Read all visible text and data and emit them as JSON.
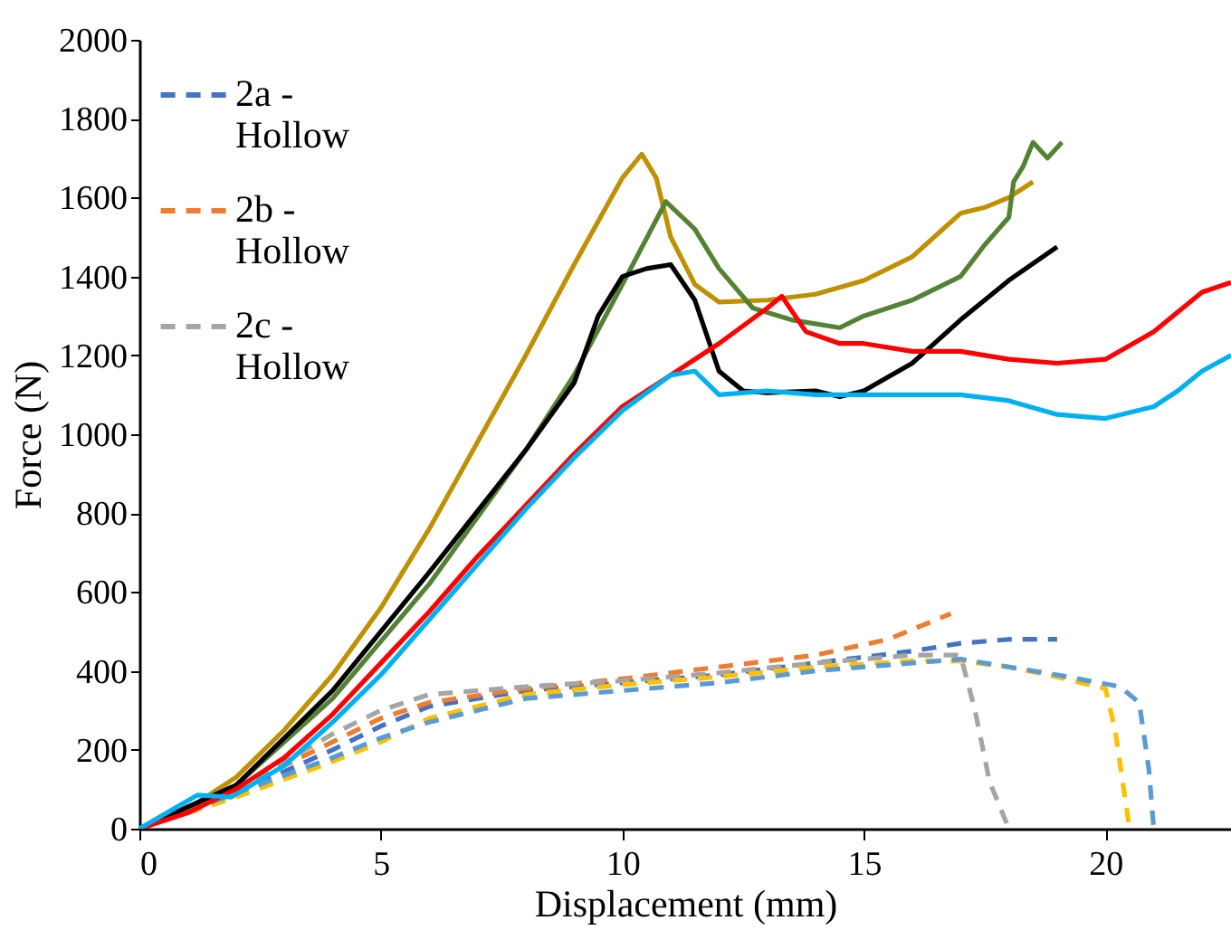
{
  "chart_data": {
    "type": "line",
    "xlabel": "Displacement (mm)",
    "ylabel": "Force (N)",
    "xlim": [
      0,
      22.6
    ],
    "xticks": [
      0,
      5,
      10,
      15,
      20
    ],
    "ylim": [
      0,
      2000
    ],
    "yticks": [
      0,
      200,
      400,
      600,
      800,
      1000,
      1200,
      1400,
      1600,
      1800,
      2000
    ],
    "grid": false,
    "legend": "top left",
    "marker": "none",
    "series": [
      {
        "name": "2a - Hollow",
        "color": "#4472c4",
        "line_style": "dashed",
        "x": [
          0,
          2,
          4,
          5,
          6,
          8,
          10,
          12,
          14,
          16,
          17,
          18,
          19
        ],
        "values": [
          0,
          90,
          200,
          260,
          310,
          350,
          370,
          390,
          420,
          450,
          470,
          480,
          480
        ]
      },
      {
        "name": "2b - Hollow",
        "color": "#ed7d31",
        "line_style": "dashed",
        "x": [
          0,
          2,
          4,
          5,
          6,
          8,
          10,
          12,
          14,
          15.5,
          16.8
        ],
        "values": [
          0,
          100,
          220,
          280,
          320,
          355,
          380,
          410,
          440,
          480,
          545
        ]
      },
      {
        "name": "2c - Hollow",
        "color": "#a5a5a5",
        "line_style": "dashed",
        "x": [
          0,
          2,
          4,
          5,
          6,
          8,
          10,
          12,
          14,
          16,
          17,
          17.3,
          17.6,
          18
        ],
        "values": [
          0,
          100,
          240,
          300,
          340,
          360,
          375,
          395,
          420,
          440,
          440,
          300,
          120,
          0
        ]
      },
      {
        "color": "#ffc000",
        "line_style": "dashed",
        "x": [
          0,
          2,
          4,
          5,
          6,
          8,
          10,
          12,
          14,
          16,
          17,
          18,
          19,
          20,
          20.2,
          20.5
        ],
        "values": [
          0,
          80,
          170,
          220,
          280,
          340,
          365,
          385,
          410,
          425,
          425,
          410,
          385,
          355,
          250,
          0
        ]
      },
      {
        "color": "#5b9bd5",
        "line_style": "dashed",
        "x": [
          0,
          2,
          4,
          5,
          6,
          8,
          10,
          12,
          14,
          16,
          17,
          18,
          19,
          20.3,
          20.7,
          20.9,
          21
        ],
        "values": [
          0,
          90,
          180,
          230,
          270,
          330,
          350,
          370,
          400,
          420,
          430,
          410,
          390,
          360,
          320,
          150,
          0
        ]
      },
      {
        "color": "#bf9000",
        "line_style": "solid",
        "x": [
          0,
          1,
          2,
          3,
          4,
          5,
          6,
          7,
          8,
          9,
          10,
          10.4,
          10.7,
          11,
          11.5,
          12,
          13,
          14,
          15,
          16,
          17,
          17.5,
          18,
          18.5
        ],
        "values": [
          0,
          50,
          130,
          250,
          390,
          560,
          760,
          980,
          1200,
          1430,
          1650,
          1710,
          1650,
          1500,
          1380,
          1335,
          1340,
          1355,
          1390,
          1450,
          1560,
          1575,
          1600,
          1640
        ]
      },
      {
        "color": "#548235",
        "line_style": "solid",
        "x": [
          0,
          2,
          4,
          6,
          8,
          9,
          10,
          10.9,
          11.5,
          12,
          12.7,
          13.5,
          14.5,
          15,
          16,
          17,
          17.5,
          18,
          18.1,
          18.3,
          18.5,
          18.8,
          19.1
        ],
        "values": [
          0,
          110,
          330,
          620,
          960,
          1150,
          1380,
          1590,
          1520,
          1420,
          1320,
          1290,
          1270,
          1300,
          1340,
          1400,
          1480,
          1550,
          1640,
          1680,
          1740,
          1700,
          1740
        ]
      },
      {
        "color": "#000000",
        "line_style": "solid",
        "x": [
          0,
          2,
          4,
          6,
          8,
          9,
          9.5,
          10,
          10.5,
          11,
          11.5,
          12,
          12.5,
          13,
          14,
          14.5,
          15,
          16,
          17,
          18,
          19
        ],
        "values": [
          0,
          110,
          350,
          650,
          960,
          1130,
          1300,
          1400,
          1420,
          1430,
          1340,
          1160,
          1110,
          1105,
          1110,
          1095,
          1110,
          1180,
          1290,
          1390,
          1475
        ]
      },
      {
        "color": "#ff0000",
        "line_style": "solid",
        "x": [
          0,
          1,
          2,
          3,
          4,
          5,
          6,
          7,
          8,
          9,
          10,
          11,
          12,
          13,
          13.3,
          13.8,
          14.5,
          15,
          16,
          17,
          18,
          19,
          20,
          21,
          22,
          22.6
        ],
        "values": [
          0,
          40,
          100,
          180,
          290,
          420,
          550,
          690,
          820,
          950,
          1070,
          1150,
          1230,
          1320,
          1350,
          1260,
          1230,
          1230,
          1210,
          1210,
          1190,
          1180,
          1190,
          1260,
          1360,
          1385
        ]
      },
      {
        "color": "#00b0f0",
        "line_style": "solid",
        "x": [
          0,
          1.2,
          1.9,
          3,
          4,
          5,
          6,
          7,
          8,
          9,
          10,
          11,
          11.5,
          12,
          13,
          14,
          15,
          16,
          17,
          18,
          19,
          20,
          21,
          21.5,
          22,
          22.6
        ],
        "values": [
          0,
          85,
          80,
          160,
          270,
          390,
          530,
          670,
          810,
          940,
          1060,
          1150,
          1160,
          1100,
          1110,
          1100,
          1100,
          1100,
          1100,
          1085,
          1050,
          1040,
          1070,
          1110,
          1160,
          1200
        ]
      }
    ]
  }
}
